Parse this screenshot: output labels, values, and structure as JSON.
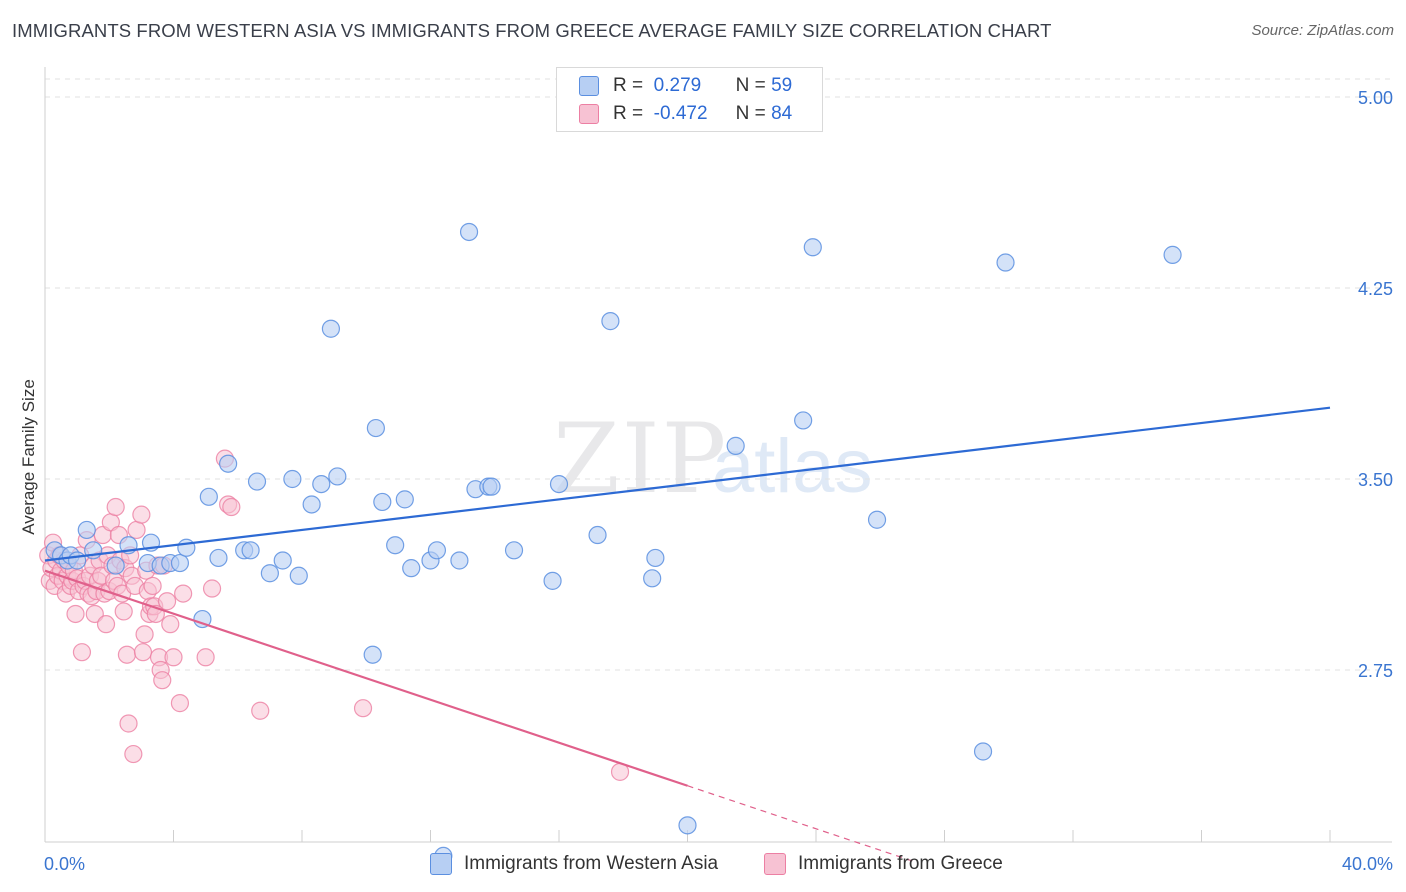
{
  "title": "IMMIGRANTS FROM WESTERN ASIA VS IMMIGRANTS FROM GREECE AVERAGE FAMILY SIZE CORRELATION CHART",
  "source": "Source: ZipAtlas.com",
  "watermark": {
    "zip": "ZIP",
    "atlas": "atlas"
  },
  "colors": {
    "blue": "#5b8fe0",
    "blue_fill": "#b7cff3",
    "blue_line": "#2d6ad4",
    "pink": "#ec7fa3",
    "pink_fill": "#f7c2d3",
    "pink_line": "#e0608b",
    "axis_text": "#3a75d0"
  },
  "legend": {
    "rows": [
      {
        "r_label": "R =",
        "r_value": " 0.279",
        "n_label": "N =",
        "n_value": "59"
      },
      {
        "r_label": "R =",
        "r_value": "-0.472",
        "n_label": "N =",
        "n_value": "84"
      }
    ]
  },
  "bottom_legend": [
    "Immigrants from Western Asia",
    "Immigrants from Greece"
  ],
  "chart_data": {
    "type": "scatter",
    "ylabel": "Average Family Size",
    "xlim": [
      0,
      40
    ],
    "ylim": [
      2.0,
      5.1
    ],
    "x_tick_labels": [
      "0.0%",
      "40.0%"
    ],
    "y_ticks": [
      2.75,
      3.5,
      4.25,
      5.0
    ],
    "y_tick_labels": [
      "2.75",
      "3.50",
      "4.25",
      "5.00"
    ],
    "grid": "horizontal dashed",
    "legend_position": "top-center",
    "series": [
      {
        "name": "Immigrants from Western Asia",
        "r": 0.279,
        "n": 59,
        "trend": {
          "x0": 0,
          "y0": 3.18,
          "x1": 40,
          "y1": 3.78,
          "dashed_from": null
        },
        "points": [
          [
            0.3,
            3.22
          ],
          [
            0.5,
            3.2
          ],
          [
            0.7,
            3.18
          ],
          [
            0.8,
            3.2
          ],
          [
            1.0,
            3.18
          ],
          [
            1.3,
            3.3
          ],
          [
            1.5,
            3.22
          ],
          [
            2.2,
            3.16
          ],
          [
            2.6,
            3.24
          ],
          [
            3.2,
            3.17
          ],
          [
            3.3,
            3.25
          ],
          [
            3.6,
            3.16
          ],
          [
            3.9,
            3.17
          ],
          [
            4.2,
            3.17
          ],
          [
            4.4,
            3.23
          ],
          [
            4.9,
            2.95
          ],
          [
            5.1,
            3.43
          ],
          [
            5.4,
            3.19
          ],
          [
            5.7,
            3.56
          ],
          [
            6.2,
            3.22
          ],
          [
            6.4,
            3.22
          ],
          [
            6.6,
            3.49
          ],
          [
            7.0,
            3.13
          ],
          [
            7.4,
            3.18
          ],
          [
            7.7,
            3.5
          ],
          [
            7.9,
            3.12
          ],
          [
            8.3,
            3.4
          ],
          [
            8.6,
            3.48
          ],
          [
            8.9,
            4.09
          ],
          [
            9.1,
            3.51
          ],
          [
            10.2,
            2.81
          ],
          [
            10.3,
            3.7
          ],
          [
            10.5,
            3.41
          ],
          [
            10.9,
            3.24
          ],
          [
            11.2,
            3.42
          ],
          [
            11.4,
            3.15
          ],
          [
            12.0,
            3.18
          ],
          [
            12.2,
            3.22
          ],
          [
            12.4,
            2.02
          ],
          [
            12.9,
            3.18
          ],
          [
            13.2,
            4.47
          ],
          [
            13.4,
            3.46
          ],
          [
            13.8,
            3.47
          ],
          [
            13.9,
            3.47
          ],
          [
            14.6,
            3.22
          ],
          [
            15.8,
            3.1
          ],
          [
            16.0,
            3.48
          ],
          [
            17.2,
            3.28
          ],
          [
            17.6,
            4.12
          ],
          [
            18.9,
            3.11
          ],
          [
            19.0,
            3.19
          ],
          [
            20.0,
            2.14
          ],
          [
            21.5,
            3.63
          ],
          [
            23.6,
            3.73
          ],
          [
            23.9,
            4.41
          ],
          [
            25.9,
            3.34
          ],
          [
            29.2,
            2.43
          ],
          [
            29.9,
            4.35
          ],
          [
            35.1,
            4.38
          ]
        ]
      },
      {
        "name": "Immigrants from Greece",
        "r": -0.472,
        "n": 84,
        "trend": {
          "x0": 0,
          "y0": 3.14,
          "x1": 27,
          "y1": 2.0,
          "dashed_from": 20
        },
        "points": [
          [
            0.1,
            3.2
          ],
          [
            0.15,
            3.1
          ],
          [
            0.2,
            3.15
          ],
          [
            0.25,
            3.25
          ],
          [
            0.3,
            3.08
          ],
          [
            0.35,
            3.18
          ],
          [
            0.4,
            3.12
          ],
          [
            0.45,
            3.2
          ],
          [
            0.5,
            3.14
          ],
          [
            0.55,
            3.1
          ],
          [
            0.6,
            3.18
          ],
          [
            0.65,
            3.05
          ],
          [
            0.7,
            3.12
          ],
          [
            0.75,
            3.16
          ],
          [
            0.8,
            3.08
          ],
          [
            0.85,
            3.1
          ],
          [
            0.9,
            3.14
          ],
          [
            0.95,
            2.97
          ],
          [
            1.0,
            3.11
          ],
          [
            1.05,
            3.06
          ],
          [
            1.1,
            3.2
          ],
          [
            1.15,
            2.82
          ],
          [
            1.2,
            3.08
          ],
          [
            1.25,
            3.1
          ],
          [
            1.3,
            3.26
          ],
          [
            1.35,
            3.05
          ],
          [
            1.4,
            3.12
          ],
          [
            1.45,
            3.04
          ],
          [
            1.5,
            3.16
          ],
          [
            1.55,
            2.97
          ],
          [
            1.6,
            3.06
          ],
          [
            1.65,
            3.1
          ],
          [
            1.7,
            3.18
          ],
          [
            1.75,
            3.12
          ],
          [
            1.8,
            3.28
          ],
          [
            1.85,
            3.05
          ],
          [
            1.9,
            2.93
          ],
          [
            1.95,
            3.2
          ],
          [
            2.0,
            3.06
          ],
          [
            2.05,
            3.33
          ],
          [
            2.1,
            3.16
          ],
          [
            2.15,
            3.1
          ],
          [
            2.2,
            3.39
          ],
          [
            2.25,
            3.08
          ],
          [
            2.3,
            3.28
          ],
          [
            2.35,
            3.18
          ],
          [
            2.4,
            3.05
          ],
          [
            2.45,
            2.98
          ],
          [
            2.5,
            3.15
          ],
          [
            2.55,
            2.81
          ],
          [
            2.6,
            2.54
          ],
          [
            2.65,
            3.2
          ],
          [
            2.7,
            3.12
          ],
          [
            2.75,
            2.42
          ],
          [
            2.8,
            3.08
          ],
          [
            2.85,
            3.3
          ],
          [
            3.0,
            3.36
          ],
          [
            3.05,
            2.82
          ],
          [
            3.1,
            2.89
          ],
          [
            3.15,
            3.14
          ],
          [
            3.2,
            3.06
          ],
          [
            3.25,
            2.97
          ],
          [
            3.3,
            3.0
          ],
          [
            3.35,
            3.08
          ],
          [
            3.4,
            3.0
          ],
          [
            3.45,
            2.97
          ],
          [
            3.5,
            3.16
          ],
          [
            3.55,
            2.8
          ],
          [
            3.6,
            2.75
          ],
          [
            3.65,
            2.71
          ],
          [
            3.7,
            3.16
          ],
          [
            3.8,
            3.02
          ],
          [
            3.9,
            2.93
          ],
          [
            4.0,
            2.8
          ],
          [
            4.2,
            2.62
          ],
          [
            4.3,
            3.05
          ],
          [
            5.0,
            2.8
          ],
          [
            5.2,
            3.07
          ],
          [
            5.6,
            3.58
          ],
          [
            5.7,
            3.4
          ],
          [
            6.7,
            2.59
          ],
          [
            9.9,
            2.6
          ],
          [
            17.9,
            2.35
          ],
          [
            5.8,
            3.39
          ]
        ]
      }
    ]
  }
}
